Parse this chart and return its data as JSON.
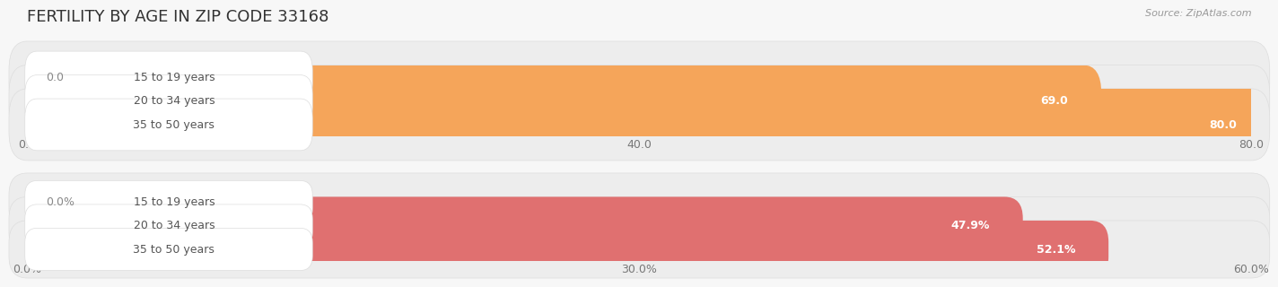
{
  "title": "FERTILITY BY AGE IN ZIP CODE 33168",
  "source": "Source: ZipAtlas.com",
  "top_group": {
    "categories": [
      "15 to 19 years",
      "20 to 34 years",
      "35 to 50 years"
    ],
    "values": [
      0.0,
      69.0,
      80.0
    ],
    "value_labels": [
      "0.0",
      "69.0",
      "80.0"
    ],
    "bar_color": "#F5A55A",
    "bg_bar_color": "#EDEDED",
    "label_color": "#555555",
    "value_color_inside": "#FFFFFF",
    "value_color_outside": "#888888",
    "xlim_max": 80.0,
    "xticks": [
      0.0,
      40.0,
      80.0
    ],
    "xticklabels": [
      "0.0",
      "40.0",
      "80.0"
    ],
    "value_threshold": 4.0
  },
  "bottom_group": {
    "categories": [
      "15 to 19 years",
      "20 to 34 years",
      "35 to 50 years"
    ],
    "values": [
      0.0,
      47.9,
      52.1
    ],
    "value_labels": [
      "0.0%",
      "47.9%",
      "52.1%"
    ],
    "bar_color": "#E07070",
    "bg_bar_color": "#EDEDED",
    "label_color": "#555555",
    "value_color_inside": "#FFFFFF",
    "value_color_outside": "#888888",
    "xlim_max": 60.0,
    "xticks": [
      0.0,
      30.0,
      60.0
    ],
    "xticklabels": [
      "0.0%",
      "30.0%",
      "60.0%"
    ],
    "value_threshold": 4.0
  },
  "bg_color": "#F7F7F7",
  "title_fontsize": 13,
  "axis_fontsize": 9,
  "label_fontsize": 9,
  "value_fontsize": 9,
  "fig_width": 14.06,
  "fig_height": 3.31
}
